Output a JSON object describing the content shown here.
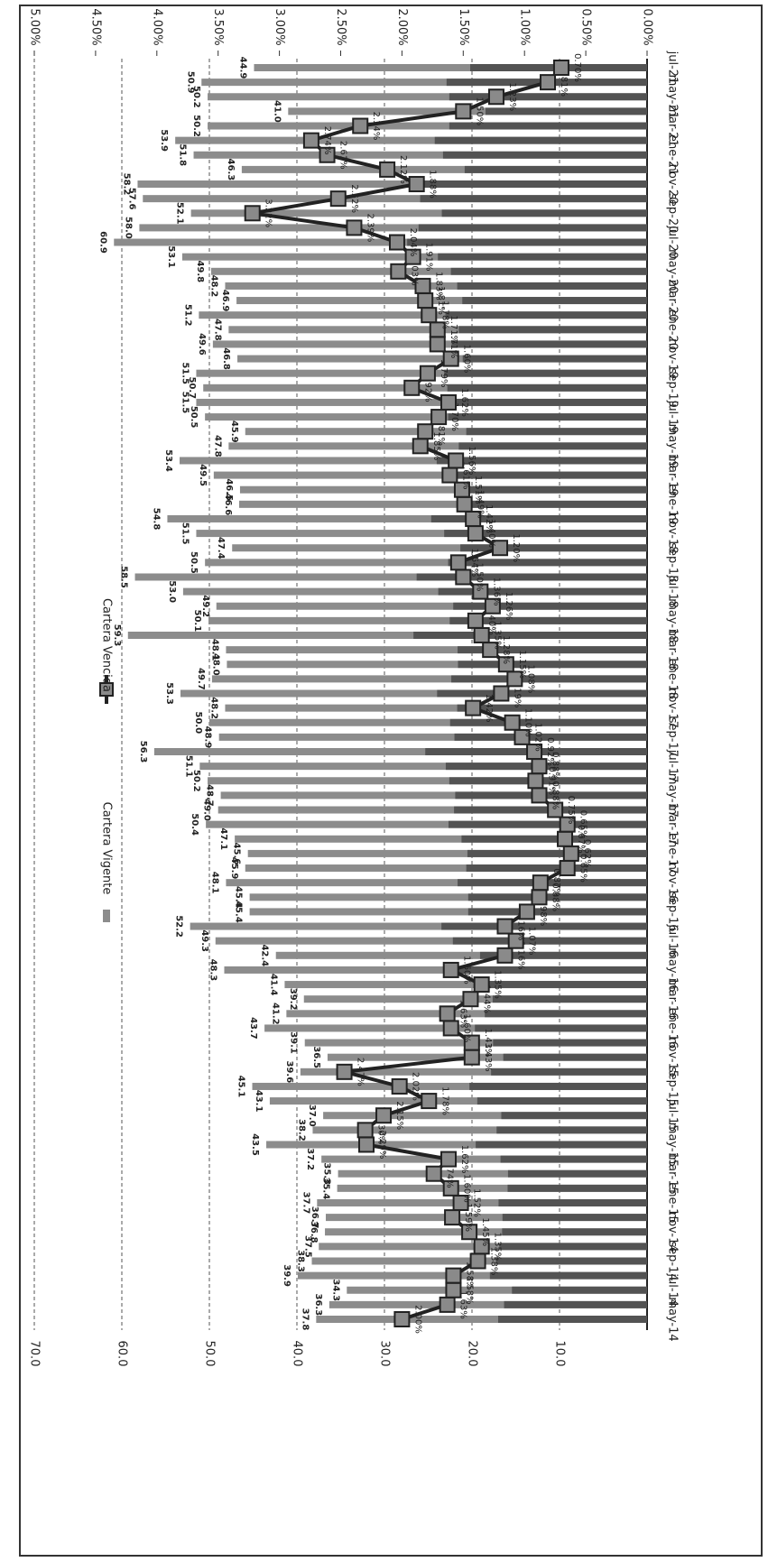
{
  "chart_data": {
    "type": "bar",
    "orientation": "horizontal",
    "categories": [
      "may-14",
      null,
      "jul-14",
      null,
      "sep-14",
      null,
      "nov-14",
      null,
      "ene-15",
      null,
      "mar-15",
      null,
      "may-15",
      null,
      "jul-15",
      null,
      "sep-15",
      null,
      "nov-15",
      null,
      "ene-16",
      null,
      "mar-16",
      null,
      "may-16",
      null,
      "jul-16",
      null,
      "sep-16",
      null,
      "nov-16",
      null,
      "ene-17",
      null,
      "mar-17",
      null,
      "may-17",
      null,
      "jul-17",
      null,
      "sep-17",
      null,
      "nov-17",
      null,
      "ene-18",
      null,
      "mar-18",
      null,
      "may-18",
      null,
      "jul-18",
      null,
      "sep-18",
      null,
      "nov-18",
      null,
      "ene-19",
      null,
      "mar-19",
      null,
      "may-19",
      null,
      "jul-19",
      null,
      "sep-19",
      null,
      "nov-19",
      null,
      "ene-20",
      null,
      "mar-20",
      null,
      "may-20",
      null,
      "jul-20",
      null,
      "sep-20",
      null,
      "nov-20",
      null,
      "ene-21",
      null,
      "mar-21",
      null,
      "may-21",
      null,
      "jul-21"
    ],
    "series": [
      {
        "name": "Cartera Vigente",
        "type": "bar",
        "color": "#8c8c8c",
        "values": [
          37.8,
          36.3,
          34.3,
          39.9,
          38.3,
          37.5,
          36.8,
          36.7,
          37.7,
          35.4,
          35.3,
          37.2,
          43.5,
          38.2,
          37.0,
          43.1,
          45.1,
          39.6,
          36.5,
          39.1,
          43.7,
          41.2,
          39.2,
          41.4,
          48.3,
          42.4,
          49.3,
          52.2,
          45.4,
          45.4,
          48.1,
          45.9,
          45.6,
          47.1,
          50.4,
          49.0,
          48.7,
          50.2,
          51.1,
          56.3,
          48.9,
          50.0,
          48.2,
          53.3,
          49.7,
          48.0,
          48.1,
          59.3,
          50.1,
          49.2,
          53.0,
          58.5,
          50.5,
          47.4,
          51.5,
          54.8,
          46.6,
          46.5,
          49.5,
          53.4,
          47.8,
          45.9,
          50.5,
          51.5,
          50.7,
          51.5,
          46.8,
          49.6,
          47.8,
          51.2,
          46.9,
          48.2,
          49.8,
          53.1,
          60.9,
          58.0,
          52.1,
          57.6,
          58.2,
          46.3,
          51.8,
          53.9,
          50.2,
          41.0,
          50.2,
          50.9,
          44.9
        ],
        "value_labels": [
          "37.8",
          "36.3",
          "34.3",
          "39.9",
          "38.3",
          "37.5",
          "36.8",
          "36.7",
          "37.7",
          "35.4",
          "35.3",
          "37.2",
          "43.5",
          "38.2",
          "37.0",
          "43.1",
          "45.1",
          "39.6",
          "36.5",
          "39.1",
          "43.7",
          "41.2",
          "39.2",
          "41.4",
          "48.3",
          "42.4",
          "49.3",
          "52.2",
          "45.4",
          "45.4",
          "48.1",
          "45.9",
          "45.6",
          "47.1",
          "50.4",
          "49.0",
          "48.7",
          "50.2",
          "51.1",
          "56.3",
          "48.9",
          "50.0",
          "48.2",
          "53.3",
          "49.7",
          "48.0",
          "48.1",
          "59.3",
          "50.1",
          "49.2",
          "53.0",
          "58.5",
          "50.5",
          "47.4",
          "51.5",
          "54.8",
          "46.6",
          "46.5",
          "49.5",
          "53.4",
          "47.8",
          "45.9",
          "50.5",
          "51.5",
          "50.7",
          "51.5",
          "46.8",
          "49.6",
          "47.8",
          "51.2",
          "46.9",
          "48.2",
          "49.8",
          "53.1",
          "60.9",
          "58.0",
          "52.1",
          "57.6",
          "58.2",
          "46.3",
          "51.8",
          "53.9",
          "50.2",
          "41.0",
          "50.2",
          "50.9",
          "44.9"
        ]
      },
      {
        "name": "Cartera Vencida",
        "type": "line",
        "axis": "y2",
        "color": "#222222",
        "marker_color": "#8a8a8a",
        "values": [
          2.0,
          1.63,
          1.58,
          1.58,
          1.38,
          1.35,
          1.45,
          1.59,
          1.52,
          1.6,
          1.74,
          1.62,
          2.29,
          2.3,
          2.15,
          1.78,
          2.02,
          2.47,
          1.43,
          1.43,
          1.6,
          1.63,
          1.44,
          1.35,
          1.6,
          1.16,
          1.07,
          1.16,
          0.98,
          0.88,
          0.87,
          0.65,
          0.62,
          0.67,
          0.65,
          0.75,
          0.88,
          0.91,
          0.88,
          0.92,
          1.02,
          1.1,
          1.42,
          1.19,
          1.08,
          1.15,
          1.28,
          1.35,
          1.4,
          1.26,
          1.36,
          1.5,
          1.54,
          1.2,
          1.4,
          1.42,
          1.49,
          1.51,
          1.61,
          1.56,
          1.85,
          1.81,
          1.7,
          1.62,
          1.92,
          1.79,
          1.6,
          1.71,
          1.71,
          1.78,
          1.81,
          1.83,
          2.03,
          1.91,
          2.04,
          2.39,
          3.22,
          2.52,
          1.88,
          2.12,
          2.61,
          2.74,
          2.34,
          1.5,
          1.23,
          0.81,
          0.7
        ],
        "value_labels": [
          "2.00%",
          "1.63%",
          "1.58%",
          "1.58%",
          "1.38%",
          "1.35%",
          "1.45%",
          "1.59%",
          "1.52%",
          "1.60%",
          "1.74%",
          "1.62%",
          "2.29%",
          "2.30%",
          "2.15%",
          "1.78%",
          "2.02%",
          "2.47%",
          "1.43%",
          "1.43%",
          "1.60%",
          "1.63%",
          "1.44%",
          "1.35%",
          "1.60%",
          "1.16%",
          "1.07%",
          "1.16%",
          "0.98%",
          "0.88%",
          "0.87%",
          "0.65%",
          "0.62%",
          "0.67%",
          "0.65%",
          "0.75%",
          "0.88%",
          "0.91%",
          "0.88%",
          "0.92%",
          "1.02%",
          "1.10%",
          "1.42%",
          "1.19%",
          "1.08%",
          "1.15%",
          "1.28%",
          "1.35%",
          "1.40%",
          "1.26%",
          "1.36%",
          "1.50%",
          "1.54%",
          "1.20%",
          "1.40%",
          "1.42%",
          "1.49%",
          "1.51%",
          "1.61%",
          "1.56%",
          "1.85%",
          "1.81%",
          "1.70%",
          "1.62%",
          "1.92%",
          "1.79%",
          "1.60%",
          "1.71%",
          "1.71%",
          "1.78%",
          "1.81%",
          "1.83%",
          "2.03%",
          "1.91%",
          "2.04%",
          "2.39%",
          "3.22%",
          "2.52%",
          "1.88%",
          "2.12%",
          "2.61%",
          "2.74%",
          "2.34%",
          "1.50%",
          "1.23%",
          "0.81%",
          "0.70%"
        ]
      }
    ],
    "ylim": [
      0,
      70
    ],
    "yticks": [
      {
        "value": 10,
        "label": "10.0"
      },
      {
        "value": 20,
        "label": "20.0"
      },
      {
        "value": 30,
        "label": "30.0"
      },
      {
        "value": 40,
        "label": "40.0"
      },
      {
        "value": 50,
        "label": "50.0"
      },
      {
        "value": 60,
        "label": "60.0"
      },
      {
        "value": 70,
        "label": "70.0"
      }
    ],
    "y2lim": [
      0,
      5
    ],
    "y2ticks": [
      {
        "value": 0,
        "label": "0.00%"
      },
      {
        "value": 0.5,
        "label": "0.50%"
      },
      {
        "value": 1,
        "label": "1.00%"
      },
      {
        "value": 1.5,
        "label": "1.50%"
      },
      {
        "value": 2,
        "label": "2.00%"
      },
      {
        "value": 2.5,
        "label": "2.50%"
      },
      {
        "value": 3,
        "label": "3.00%"
      },
      {
        "value": 3.5,
        "label": "3.50%"
      },
      {
        "value": 4,
        "label": "4.00%"
      },
      {
        "value": 4.5,
        "label": "4.50%"
      },
      {
        "value": 5,
        "label": "5.00%"
      }
    ],
    "grid": true,
    "legend": "left"
  }
}
